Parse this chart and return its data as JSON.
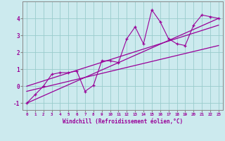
{
  "xlabel": "Windchill (Refroidissement éolien,°C)",
  "x_scatter": [
    0,
    1,
    2,
    3,
    4,
    5,
    6,
    7,
    8,
    9,
    10,
    11,
    12,
    13,
    14,
    15,
    16,
    17,
    18,
    19,
    20,
    21,
    22,
    23
  ],
  "y_scatter": [
    -1.0,
    -0.5,
    0.0,
    0.7,
    0.8,
    0.8,
    0.9,
    -0.3,
    0.05,
    1.5,
    1.5,
    1.4,
    2.8,
    3.5,
    2.5,
    4.5,
    3.8,
    2.8,
    2.5,
    2.4,
    3.6,
    4.2,
    4.1,
    4.0
  ],
  "line1_x": [
    0,
    23
  ],
  "line1_y": [
    -1.0,
    4.0
  ],
  "line2_x": [
    0,
    23
  ],
  "line2_y": [
    -0.3,
    2.4
  ],
  "line3_x": [
    0,
    23
  ],
  "line3_y": [
    0.0,
    3.6
  ],
  "color": "#990099",
  "bg_color": "#cceaee",
  "grid_color": "#99cccc",
  "ylim": [
    -1.4,
    5.0
  ],
  "xlim": [
    -0.5,
    23.5
  ],
  "xtick_labels": [
    "0",
    "1",
    "2",
    "3",
    "4",
    "5",
    "6",
    "7",
    "8",
    "9",
    "10",
    "11",
    "12",
    "13",
    "14",
    "15",
    "16",
    "17",
    "18",
    "19",
    "20",
    "21",
    "22",
    "23"
  ],
  "ytick_values": [
    -1,
    0,
    1,
    2,
    3,
    4
  ],
  "ytick_labels": [
    "-1",
    "0",
    "1",
    "2",
    "3",
    "4"
  ]
}
